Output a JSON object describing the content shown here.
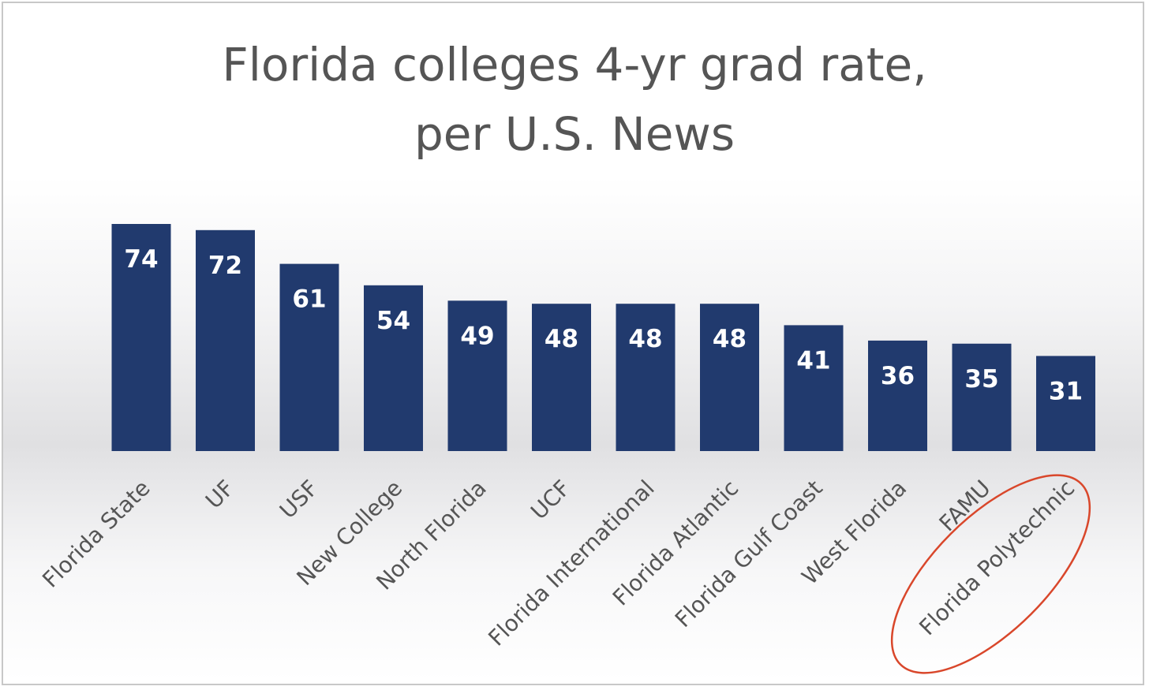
{
  "chart_data": {
    "type": "bar",
    "title": "Florida colleges 4-yr grad rate,",
    "subtitle": "per U.S. News",
    "categories": [
      "Florida State",
      "UF",
      "USF",
      "New College",
      "North Florida",
      "UCF",
      "Florida International",
      "Florida Atlantic",
      "Florida Gulf Coast",
      "West Florida",
      "FAMU",
      "Florida Polytechnic"
    ],
    "values": [
      74,
      72,
      61,
      54,
      49,
      48,
      48,
      48,
      41,
      36,
      35,
      31
    ],
    "data_labels": [
      "74",
      "72",
      "61",
      "54",
      "49",
      "48",
      "48",
      "48",
      "41",
      "36",
      "35",
      "31"
    ],
    "xlabel": "",
    "ylabel": "",
    "ylim": [
      0,
      80
    ],
    "grid": false,
    "legend": "none",
    "bar_color": "#213a6e",
    "highlighted_category": "Florida Polytechnic",
    "highlight_color": "#d9472b"
  }
}
